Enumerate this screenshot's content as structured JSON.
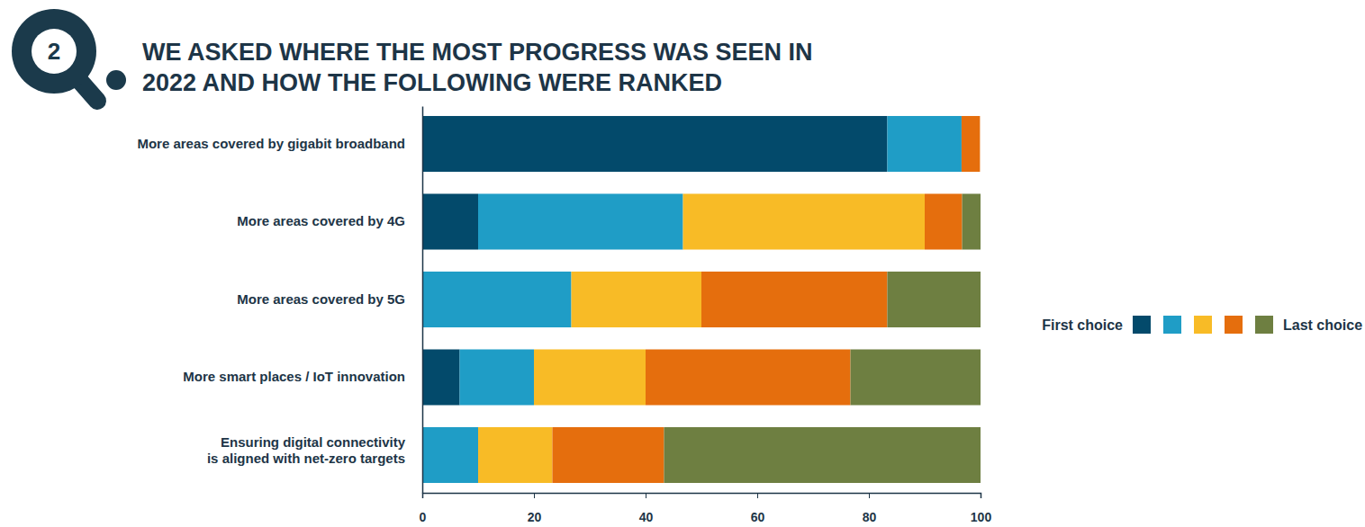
{
  "chart_data": {
    "type": "bar",
    "title": "WE ASKED WHERE THE MOST PROGRESS WAS SEEN IN 2022 AND HOW THE FOLLOWING WERE RANKED",
    "annotations": [
      "2"
    ],
    "orientation": "horizontal",
    "stacked": true,
    "categories": [
      "More areas covered by gigabit broadband",
      "More areas covered by 4G",
      "More areas covered by 5G",
      "More smart places / IoT innovation",
      "Ensuring digital connectivity is aligned with net-zero targets"
    ],
    "series": [
      {
        "name": "First choice",
        "color": "#034a6b",
        "values": [
          83.3,
          10,
          0,
          6.7,
          0
        ]
      },
      {
        "name": null,
        "color": "#1f9dc6",
        "values": [
          13.3,
          36.7,
          26.7,
          13.3,
          10
        ]
      },
      {
        "name": null,
        "color": "#f8bb26",
        "values": [
          0,
          43.3,
          23.3,
          20,
          13.3
        ]
      },
      {
        "name": null,
        "color": "#e56e0d",
        "values": [
          3.3,
          6.7,
          33.3,
          36.7,
          20
        ]
      },
      {
        "name": "Last choice",
        "color": "#6e7f41",
        "values": [
          0,
          3.3,
          16.7,
          23.3,
          56.7
        ]
      }
    ],
    "xlim": [
      0,
      100
    ],
    "xticks": [
      0,
      20,
      40,
      60,
      80,
      100
    ],
    "grid": false,
    "legend": "right"
  }
}
